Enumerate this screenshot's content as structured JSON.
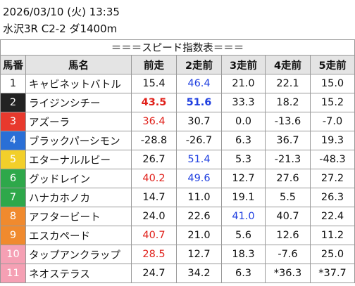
{
  "header": {
    "datetime": "2026/03/10 (火) 13:35",
    "race": "水沢3R C2-2 ダ1400m"
  },
  "table": {
    "title": "＝＝＝スピード指数表＝＝＝",
    "columns": [
      "馬番",
      "馬名",
      "前走",
      "2走前",
      "3走前",
      "4走前",
      "5走前"
    ],
    "rows": [
      [
        "1",
        "キャビネットバトル",
        "15.4",
        "46.4",
        "21.0",
        "22.1",
        "15.0"
      ],
      [
        "2",
        "ライジンシチー",
        "43.5",
        "51.6",
        "33.3",
        "18.2",
        "15.2"
      ],
      [
        "3",
        "アズーラ",
        "36.4",
        "30.7",
        "0.0",
        "-13.6",
        "-7.0"
      ],
      [
        "4",
        "ブラックパーシモン",
        "-28.8",
        "-26.7",
        "6.3",
        "36.7",
        "19.3"
      ],
      [
        "5",
        "エターナルルビー",
        "26.7",
        "51.4",
        "5.3",
        "-21.3",
        "-48.3"
      ],
      [
        "6",
        "グッドレイン",
        "40.2",
        "49.6",
        "12.7",
        "27.6",
        "27.2"
      ],
      [
        "7",
        "ハナカホノカ",
        "14.7",
        "11.0",
        "19.1",
        "5.5",
        "26.3"
      ],
      [
        "8",
        "アフタービート",
        "24.0",
        "22.6",
        "41.0",
        "40.7",
        "22.4"
      ],
      [
        "9",
        "エスカペード",
        "40.7",
        "21.0",
        "5.6",
        "12.6",
        "11.2"
      ],
      [
        "10",
        "タップアンクラップ",
        "28.5",
        "12.7",
        "18.3",
        "-7.6",
        "25.0"
      ],
      [
        "11",
        "ネオステラス",
        "24.7",
        "34.2",
        "6.3",
        "*36.3",
        "*37.7"
      ]
    ]
  }
}
